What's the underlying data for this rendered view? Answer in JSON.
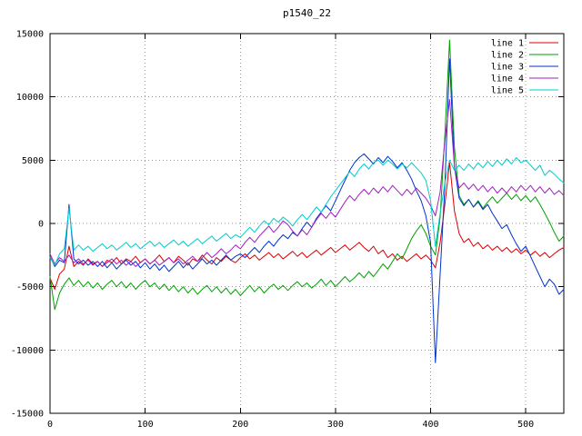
{
  "figure": {
    "title": "p1540_22"
  },
  "chart_data": {
    "type": "line",
    "title": "p1540_22",
    "xlabel": "",
    "ylabel": "",
    "xlim": [
      0,
      540
    ],
    "ylim": [
      -15000,
      15000
    ],
    "xticks": [
      0,
      100,
      200,
      300,
      400,
      500
    ],
    "yticks": [
      -15000,
      -10000,
      -5000,
      0,
      5000,
      10000,
      15000
    ],
    "grid": true,
    "grid_style": "dotted",
    "legend_position": "top-right",
    "background_color": "#ffffff",
    "border_color": "#000000",
    "x_start": 0,
    "x_step": 5,
    "series": [
      {
        "name": "line 1",
        "color": "#dd0000",
        "values": [
          -4300,
          -5200,
          -4000,
          -3600,
          -1800,
          -3400,
          -3000,
          -3300,
          -2800,
          -3200,
          -3000,
          -3400,
          -2900,
          -3100,
          -2700,
          -3200,
          -2800,
          -3000,
          -2600,
          -3100,
          -2800,
          -3200,
          -2900,
          -2500,
          -3000,
          -2700,
          -3100,
          -2600,
          -2900,
          -3300,
          -2800,
          -3000,
          -2500,
          -2900,
          -3200,
          -2700,
          -3000,
          -2600,
          -2900,
          -3100,
          -2700,
          -2400,
          -2800,
          -2500,
          -2900,
          -2600,
          -2300,
          -2700,
          -2400,
          -2800,
          -2500,
          -2200,
          -2600,
          -2300,
          -2700,
          -2400,
          -2100,
          -2500,
          -2200,
          -1900,
          -2300,
          -2000,
          -1700,
          -2100,
          -1800,
          -1500,
          -1900,
          -2200,
          -1800,
          -2400,
          -2100,
          -2700,
          -2400,
          -2900,
          -2600,
          -3000,
          -2700,
          -2400,
          -2800,
          -2500,
          -2900,
          -3500,
          -1500,
          1500,
          4800,
          1000,
          -800,
          -1500,
          -1200,
          -1800,
          -1500,
          -2000,
          -1700,
          -2100,
          -1800,
          -2200,
          -1900,
          -2300,
          -2000,
          -2400,
          -2100,
          -2500,
          -2200,
          -2600,
          -2300,
          -2700,
          -2400,
          -2100,
          -1900
        ]
      },
      {
        "name": "line 2",
        "color": "#00a000",
        "values": [
          -4200,
          -6800,
          -5500,
          -4800,
          -4300,
          -4900,
          -4500,
          -5000,
          -4600,
          -5100,
          -4700,
          -5200,
          -4800,
          -4500,
          -5000,
          -4600,
          -5100,
          -4700,
          -5200,
          -4800,
          -4500,
          -5000,
          -4700,
          -5200,
          -4800,
          -5300,
          -4900,
          -5400,
          -5000,
          -5500,
          -5100,
          -5600,
          -5200,
          -4900,
          -5400,
          -5000,
          -5500,
          -5100,
          -5600,
          -5200,
          -5700,
          -5300,
          -4900,
          -5400,
          -5000,
          -5500,
          -5100,
          -4800,
          -5200,
          -4900,
          -5300,
          -4900,
          -4600,
          -5000,
          -4700,
          -5100,
          -4800,
          -4400,
          -4900,
          -4500,
          -5000,
          -4600,
          -4200,
          -4600,
          -4300,
          -3900,
          -4300,
          -3800,
          -4200,
          -3700,
          -3200,
          -3600,
          -3000,
          -2400,
          -2800,
          -2000,
          -1200,
          -600,
          -100,
          -800,
          -1800,
          -2500,
          500,
          7000,
          14500,
          6000,
          2200,
          1500,
          1900,
          1300,
          1800,
          1200,
          1700,
          2100,
          1600,
          2000,
          2400,
          1900,
          2300,
          1800,
          2200,
          1700,
          2100,
          1500,
          800,
          100,
          -700,
          -1400,
          -1000
        ]
      },
      {
        "name": "line 3",
        "color": "#0033cc",
        "values": [
          -2600,
          -3400,
          -2900,
          -3100,
          1500,
          -2800,
          -3200,
          -2900,
          -3300,
          -3000,
          -3400,
          -3000,
          -3500,
          -3100,
          -3600,
          -3200,
          -2900,
          -3300,
          -3000,
          -3500,
          -3100,
          -3600,
          -3200,
          -3700,
          -3300,
          -3800,
          -3400,
          -3000,
          -3500,
          -3100,
          -3600,
          -3200,
          -2800,
          -3200,
          -2900,
          -3300,
          -2900,
          -2500,
          -2900,
          -2600,
          -2400,
          -2700,
          -2300,
          -1900,
          -2300,
          -1800,
          -1400,
          -1800,
          -1300,
          -900,
          -1200,
          -700,
          -1000,
          -400,
          100,
          -300,
          400,
          900,
          1400,
          1000,
          1800,
          2600,
          3400,
          4200,
          4800,
          5200,
          5500,
          5100,
          4700,
          5200,
          4800,
          5300,
          4900,
          4400,
          4800,
          4200,
          3500,
          2600,
          1800,
          600,
          -1500,
          -11000,
          -4000,
          3000,
          13000,
          4500,
          2000,
          1400,
          1900,
          1300,
          1700,
          1100,
          1500,
          800,
          200,
          -400,
          -100,
          -900,
          -1600,
          -2200,
          -1800,
          -2600,
          -3400,
          -4200,
          -5000,
          -4400,
          -4800,
          -5600,
          -5200
        ]
      },
      {
        "name": "line 4",
        "color": "#a020c0",
        "values": [
          -2400,
          -3200,
          -2700,
          -3000,
          -2500,
          -3100,
          -2800,
          -3200,
          -2900,
          -3300,
          -3000,
          -3400,
          -3100,
          -2800,
          -3200,
          -2900,
          -3300,
          -3000,
          -3400,
          -3100,
          -2800,
          -3200,
          -2900,
          -3300,
          -3000,
          -2700,
          -3100,
          -2800,
          -3200,
          -2900,
          -2600,
          -3000,
          -2700,
          -2300,
          -2700,
          -2400,
          -2000,
          -2400,
          -2100,
          -1700,
          -2000,
          -1500,
          -1100,
          -1500,
          -1000,
          -600,
          -200,
          -700,
          -300,
          200,
          -100,
          -600,
          -1000,
          -500,
          -900,
          -300,
          300,
          800,
          400,
          900,
          500,
          1100,
          1700,
          2200,
          1800,
          2300,
          2700,
          2300,
          2800,
          2400,
          2900,
          2500,
          3000,
          2600,
          2200,
          2700,
          2300,
          2800,
          2400,
          2000,
          1400,
          600,
          2500,
          6500,
          9800,
          4500,
          2800,
          3200,
          2700,
          3100,
          2600,
          3000,
          2500,
          2900,
          2400,
          2800,
          2400,
          2900,
          2500,
          3000,
          2600,
          3000,
          2500,
          2900,
          2400,
          2800,
          2300,
          2600,
          2200
        ]
      },
      {
        "name": "line 5",
        "color": "#00cccc",
        "values": [
          -2700,
          -3300,
          -2400,
          -2000,
          1200,
          -2100,
          -1700,
          -2100,
          -1800,
          -2200,
          -1900,
          -1600,
          -2000,
          -1700,
          -2100,
          -1800,
          -1500,
          -1900,
          -1600,
          -2000,
          -1700,
          -1400,
          -1800,
          -1500,
          -1900,
          -1600,
          -1300,
          -1700,
          -1400,
          -1800,
          -1500,
          -1200,
          -1600,
          -1300,
          -1000,
          -1400,
          -1100,
          -800,
          -1200,
          -900,
          -1100,
          -700,
          -300,
          -700,
          -200,
          200,
          -100,
          400,
          100,
          500,
          200,
          -200,
          300,
          700,
          300,
          800,
          1300,
          900,
          1500,
          2100,
          2600,
          3100,
          3600,
          4100,
          3700,
          4300,
          4700,
          4300,
          4800,
          5000,
          4600,
          5000,
          4700,
          4300,
          4700,
          4400,
          4800,
          4400,
          4000,
          3400,
          1800,
          -1800,
          800,
          3200,
          5000,
          4200,
          4600,
          4200,
          4700,
          4300,
          4800,
          4400,
          4900,
          4500,
          5000,
          4600,
          5100,
          4700,
          5200,
          4800,
          5000,
          4600,
          4200,
          4600,
          3800,
          4200,
          3900,
          3500,
          3200
        ]
      }
    ]
  }
}
